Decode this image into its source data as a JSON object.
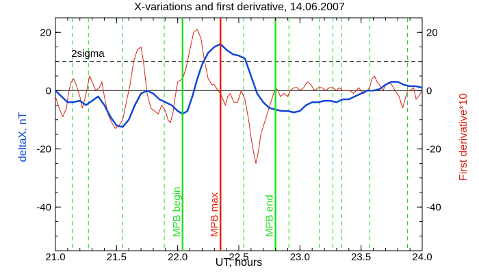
{
  "chart_data": {
    "type": "line",
    "title": "X-variations and first derivative, 14.06.2007",
    "xlabel": "UT, hours",
    "ylabel_left": "deltaX, nT",
    "ylabel_right": "First derivative*10",
    "xlim": [
      21.0,
      24.0
    ],
    "ylim": [
      -55,
      25
    ],
    "x_ticks": [
      "21.0",
      "21.5",
      "22.0",
      "22.5",
      "23.0",
      "23.5",
      "24.0"
    ],
    "y_ticks_left": [
      "20",
      "0",
      "-20",
      "-40"
    ],
    "y_ticks_right": [
      "20",
      "0",
      "-20",
      "-40"
    ],
    "colors": {
      "deltaX": "#1146d6",
      "derivative": "#d6230f",
      "mpb": "#22dd22",
      "mpb_max": "#e8200a",
      "dashed": "#22cc22"
    },
    "sigma": {
      "label": "2sigma",
      "value": 10
    },
    "zero_line": 0,
    "dashed_markers_x": [
      21.14,
      21.27,
      21.55,
      21.89,
      22.54,
      22.91,
      23.16,
      23.27,
      23.34,
      23.57,
      23.88
    ],
    "vertical_markers": [
      {
        "x": 22.04,
        "label": "MPB begin",
        "kind": "mpb"
      },
      {
        "x": 22.35,
        "label": "MPB max",
        "kind": "mpb_max"
      },
      {
        "x": 22.8,
        "label": "MPB end",
        "kind": "mpb"
      }
    ],
    "series": [
      {
        "key": "deltaX",
        "name": "deltaX, nT",
        "points": [
          [
            21.0,
            0
          ],
          [
            21.05,
            -2
          ],
          [
            21.1,
            -4
          ],
          [
            21.14,
            -4
          ],
          [
            21.2,
            -3.5
          ],
          [
            21.25,
            -5
          ],
          [
            21.3,
            -3.5
          ],
          [
            21.35,
            -2
          ],
          [
            21.4,
            -5
          ],
          [
            21.45,
            -9
          ],
          [
            21.5,
            -12
          ],
          [
            21.55,
            -12.5
          ],
          [
            21.6,
            -10
          ],
          [
            21.65,
            -5
          ],
          [
            21.7,
            -1
          ],
          [
            21.75,
            0
          ],
          [
            21.8,
            -1
          ],
          [
            21.85,
            -3
          ],
          [
            21.9,
            -4
          ],
          [
            21.95,
            -5
          ],
          [
            22.0,
            -7
          ],
          [
            22.04,
            -8
          ],
          [
            22.08,
            -7
          ],
          [
            22.12,
            -2
          ],
          [
            22.16,
            4
          ],
          [
            22.2,
            9
          ],
          [
            22.25,
            13
          ],
          [
            22.3,
            15
          ],
          [
            22.35,
            16
          ],
          [
            22.4,
            14
          ],
          [
            22.45,
            12.5
          ],
          [
            22.5,
            12
          ],
          [
            22.55,
            11
          ],
          [
            22.6,
            5
          ],
          [
            22.65,
            -1
          ],
          [
            22.7,
            -4
          ],
          [
            22.75,
            -6
          ],
          [
            22.8,
            -6.5
          ],
          [
            22.85,
            -7
          ],
          [
            22.9,
            -7
          ],
          [
            22.95,
            -7.5
          ],
          [
            23.0,
            -7
          ],
          [
            23.05,
            -5
          ],
          [
            23.1,
            -4
          ],
          [
            23.15,
            -4
          ],
          [
            23.2,
            -3.5
          ],
          [
            23.25,
            -3.5
          ],
          [
            23.3,
            -4
          ],
          [
            23.35,
            -3
          ],
          [
            23.4,
            -3
          ],
          [
            23.45,
            -2
          ],
          [
            23.5,
            -1
          ],
          [
            23.55,
            0
          ],
          [
            23.6,
            0
          ],
          [
            23.65,
            0.5
          ],
          [
            23.7,
            2
          ],
          [
            23.75,
            3
          ],
          [
            23.8,
            3
          ],
          [
            23.85,
            2
          ],
          [
            23.9,
            1.5
          ],
          [
            23.95,
            1.5
          ],
          [
            24.0,
            1
          ]
        ]
      },
      {
        "key": "derivative",
        "name": "First derivative*10",
        "points": [
          [
            21.0,
            -2
          ],
          [
            21.03,
            -6
          ],
          [
            21.06,
            -9
          ],
          [
            21.09,
            -6
          ],
          [
            21.11,
            0
          ],
          [
            21.13,
            3
          ],
          [
            21.15,
            4
          ],
          [
            21.17,
            2
          ],
          [
            21.2,
            -2
          ],
          [
            21.22,
            -6
          ],
          [
            21.24,
            -3
          ],
          [
            21.26,
            1
          ],
          [
            21.28,
            5
          ],
          [
            21.3,
            3
          ],
          [
            21.33,
            0
          ],
          [
            21.36,
            1
          ],
          [
            21.38,
            3
          ],
          [
            21.4,
            -2
          ],
          [
            21.43,
            -8
          ],
          [
            21.46,
            -11
          ],
          [
            21.49,
            -13
          ],
          [
            21.52,
            -12
          ],
          [
            21.55,
            -10
          ],
          [
            21.58,
            -4
          ],
          [
            21.61,
            2
          ],
          [
            21.64,
            10
          ],
          [
            21.67,
            14
          ],
          [
            21.7,
            15
          ],
          [
            21.72,
            10
          ],
          [
            21.75,
            -1
          ],
          [
            21.78,
            -6
          ],
          [
            21.81,
            -7
          ],
          [
            21.84,
            -8
          ],
          [
            21.87,
            -5
          ],
          [
            21.9,
            -7
          ],
          [
            21.92,
            -10
          ],
          [
            21.94,
            -11
          ],
          [
            21.96,
            -8
          ],
          [
            21.98,
            -2
          ],
          [
            22.0,
            3
          ],
          [
            22.04,
            4
          ],
          [
            22.07,
            8
          ],
          [
            22.1,
            14
          ],
          [
            22.13,
            20
          ],
          [
            22.16,
            21
          ],
          [
            22.19,
            18
          ],
          [
            22.22,
            10
          ],
          [
            22.25,
            4
          ],
          [
            22.28,
            2
          ],
          [
            22.3,
            2
          ],
          [
            22.33,
            0
          ],
          [
            22.35,
            -1
          ],
          [
            22.37,
            -3
          ],
          [
            22.39,
            -5
          ],
          [
            22.41,
            -2
          ],
          [
            22.43,
            -1
          ],
          [
            22.46,
            -4
          ],
          [
            22.49,
            -4
          ],
          [
            22.52,
            0
          ],
          [
            22.55,
            -3
          ],
          [
            22.58,
            -10
          ],
          [
            22.6,
            -16
          ],
          [
            22.62,
            -21
          ],
          [
            22.64,
            -25
          ],
          [
            22.66,
            -21
          ],
          [
            22.68,
            -15
          ],
          [
            22.71,
            -11
          ],
          [
            22.74,
            -7
          ],
          [
            22.77,
            -3
          ],
          [
            22.8,
            1
          ],
          [
            22.82,
            0
          ],
          [
            22.84,
            -2
          ],
          [
            22.87,
            -1
          ],
          [
            22.9,
            -2
          ],
          [
            22.92,
            0
          ],
          [
            22.95,
            1
          ],
          [
            22.98,
            1
          ],
          [
            23.0,
            0
          ],
          [
            23.03,
            1
          ],
          [
            23.06,
            3
          ],
          [
            23.09,
            2
          ],
          [
            23.12,
            0
          ],
          [
            23.15,
            1
          ],
          [
            23.18,
            1
          ],
          [
            23.21,
            0
          ],
          [
            23.24,
            1
          ],
          [
            23.27,
            1
          ],
          [
            23.3,
            0
          ],
          [
            23.32,
            1
          ],
          [
            23.35,
            0
          ],
          [
            23.38,
            0
          ],
          [
            23.41,
            0
          ],
          [
            23.44,
            -1
          ],
          [
            23.46,
            0
          ],
          [
            23.48,
            1
          ],
          [
            23.5,
            0
          ],
          [
            23.52,
            -1
          ],
          [
            23.55,
            0
          ],
          [
            23.57,
            1
          ],
          [
            23.59,
            4
          ],
          [
            23.61,
            5
          ],
          [
            23.63,
            3
          ],
          [
            23.65,
            2
          ],
          [
            23.68,
            0
          ],
          [
            23.7,
            2
          ],
          [
            23.73,
            3
          ],
          [
            23.75,
            2
          ],
          [
            23.78,
            0
          ],
          [
            23.81,
            -2
          ],
          [
            23.84,
            -6
          ],
          [
            23.86,
            -3
          ],
          [
            23.88,
            0
          ],
          [
            23.9,
            0
          ],
          [
            23.93,
            1
          ],
          [
            23.95,
            -3
          ],
          [
            23.97,
            -2
          ],
          [
            24.0,
            0
          ]
        ]
      }
    ]
  }
}
